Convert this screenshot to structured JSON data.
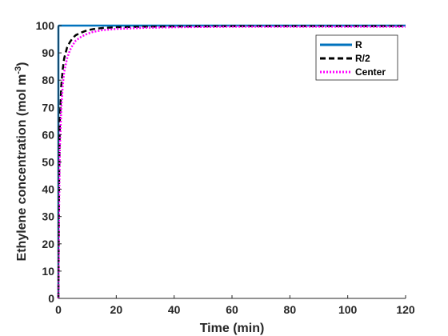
{
  "chart_data": {
    "type": "line",
    "xlabel": "Time (min)",
    "ylabel_main": "Ethylene concentration (mol m",
    "ylabel_sup": "-3",
    "ylabel_close": ")",
    "xlim": [
      0,
      120
    ],
    "ylim": [
      0,
      100
    ],
    "xticks": [
      0,
      20,
      40,
      60,
      80,
      100,
      120
    ],
    "yticks": [
      0,
      10,
      20,
      30,
      40,
      50,
      60,
      70,
      80,
      90,
      100
    ],
    "grid": false,
    "legend_position": "top-right",
    "series": [
      {
        "name": "R",
        "color": "#0072BD",
        "style": "solid",
        "x": [
          0,
          0,
          0.05,
          0.2,
          1,
          5,
          20,
          60,
          120
        ],
        "y": [
          0,
          99.5,
          99.8,
          100,
          100,
          100,
          100,
          100,
          100
        ]
      },
      {
        "name": "R/2",
        "color": "#000000",
        "style": "dashed",
        "x": [
          0,
          0.2,
          0.5,
          1,
          1.5,
          2,
          3,
          4,
          5,
          6,
          8,
          10,
          12,
          15,
          20,
          30,
          40,
          60,
          80,
          100,
          120
        ],
        "y": [
          0,
          40,
          65,
          78,
          84,
          88,
          92,
          94,
          95.5,
          96.5,
          97.5,
          98.3,
          98.7,
          99.1,
          99.4,
          99.6,
          99.7,
          99.8,
          99.8,
          99.8,
          99.8
        ]
      },
      {
        "name": "Center",
        "color": "#FF00FF",
        "style": "dotted",
        "x": [
          0,
          0.2,
          0.5,
          1,
          1.5,
          2,
          3,
          4,
          5,
          6,
          8,
          10,
          12,
          15,
          20,
          30,
          40,
          60,
          80,
          100,
          120
        ],
        "y": [
          0,
          30,
          55,
          70,
          78,
          83,
          88,
          91,
          93,
          94.5,
          96,
          97,
          97.7,
          98.3,
          98.8,
          99.2,
          99.4,
          99.6,
          99.6,
          99.6,
          99.6
        ]
      }
    ]
  }
}
